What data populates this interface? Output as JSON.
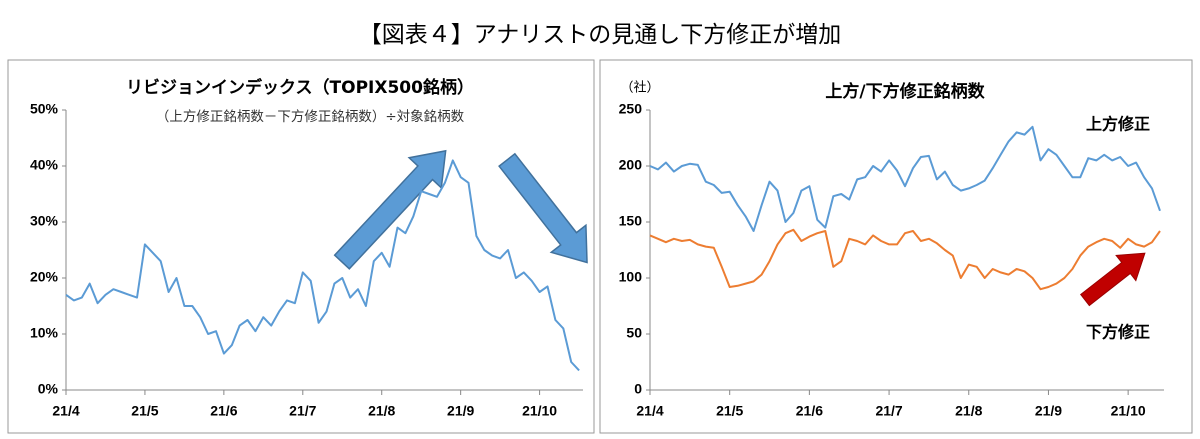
{
  "title": "【図表４】アナリストの見通し下方修正が増加",
  "chart_data": [
    {
      "type": "line",
      "title": "リビジョンインデックス（TOPIX500銘柄）",
      "subtitle": "（上方修正銘柄数－下方修正銘柄数）÷対象銘柄数",
      "color": "#5b9bd5",
      "x": [
        0,
        0.1,
        0.2,
        0.3,
        0.4,
        0.5,
        0.6,
        0.7,
        0.8,
        0.9,
        1,
        1.1,
        1.2,
        1.3,
        1.4,
        1.5,
        1.6,
        1.7,
        1.8,
        1.9,
        2,
        2.1,
        2.2,
        2.3,
        2.4,
        2.5,
        2.6,
        2.7,
        2.8,
        2.9,
        3,
        3.1,
        3.2,
        3.3,
        3.4,
        3.5,
        3.6,
        3.7,
        3.8,
        3.9,
        4,
        4.1,
        4.2,
        4.3,
        4.4,
        4.5,
        4.6,
        4.7,
        4.8,
        4.9,
        5,
        5.1,
        5.2,
        5.3,
        5.4,
        5.5,
        5.6,
        5.7,
        5.8,
        5.9,
        6,
        6.1,
        6.2,
        6.3,
        6.4,
        6.5
      ],
      "values": [
        17,
        16,
        16.5,
        19,
        15.5,
        17,
        18,
        17.5,
        17,
        16.5,
        26,
        24.5,
        23,
        17.5,
        20,
        15,
        15,
        13,
        10,
        10.5,
        6.5,
        8,
        11.5,
        12.5,
        10.5,
        13,
        11.5,
        14,
        16,
        15.5,
        21,
        19.5,
        12,
        14,
        19,
        20,
        16.5,
        18,
        15,
        23,
        24.5,
        22,
        29,
        28,
        31,
        35.5,
        35,
        34.5,
        37,
        41,
        38,
        37,
        27.5,
        25,
        24,
        23.5,
        25,
        20,
        21,
        19.5,
        17.5,
        18.5,
        12.5,
        11,
        5,
        3.5
      ],
      "xlim": [
        0,
        6.55
      ],
      "xticks": [
        {
          "value": 0,
          "label": "21/4"
        },
        {
          "value": 1,
          "label": "21/5"
        },
        {
          "value": 2,
          "label": "21/6"
        },
        {
          "value": 3,
          "label": "21/7"
        },
        {
          "value": 4,
          "label": "21/8"
        },
        {
          "value": 5,
          "label": "21/9"
        },
        {
          "value": 6,
          "label": "21/10"
        }
      ],
      "ylim": [
        0,
        50
      ],
      "yticks": [
        {
          "value": 0,
          "label": "0%"
        },
        {
          "value": 10,
          "label": "10%"
        },
        {
          "value": 20,
          "label": "20%"
        },
        {
          "value": 30,
          "label": "30%"
        },
        {
          "value": 40,
          "label": "40%"
        },
        {
          "value": 50,
          "label": "50%"
        }
      ],
      "grid": false
    },
    {
      "type": "line",
      "title": "上方/下方修正銘柄数",
      "ylabel": "（社）",
      "x": [
        0,
        0.1,
        0.2,
        0.3,
        0.4,
        0.5,
        0.6,
        0.7,
        0.8,
        0.9,
        1,
        1.1,
        1.2,
        1.3,
        1.4,
        1.5,
        1.6,
        1.7,
        1.8,
        1.9,
        2,
        2.1,
        2.2,
        2.3,
        2.4,
        2.5,
        2.6,
        2.7,
        2.8,
        2.9,
        3,
        3.1,
        3.2,
        3.3,
        3.4,
        3.5,
        3.6,
        3.7,
        3.8,
        3.9,
        4,
        4.1,
        4.2,
        4.3,
        4.4,
        4.5,
        4.6,
        4.7,
        4.8,
        4.9,
        5,
        5.1,
        5.2,
        5.3,
        5.4,
        5.5,
        5.6,
        5.7,
        5.8,
        5.9,
        6,
        6.1,
        6.2,
        6.3,
        6.4
      ],
      "series": [
        {
          "name": "上方修正",
          "color": "#5b9bd5",
          "values": [
            200,
            197,
            203,
            195,
            200,
            202,
            201,
            186,
            183,
            176,
            177,
            165,
            155,
            142,
            165,
            186,
            178,
            150,
            158,
            178,
            182,
            152,
            145,
            173,
            175,
            170,
            188,
            190,
            200,
            195,
            205,
            196,
            182,
            198,
            208,
            209,
            188,
            195,
            183,
            178,
            180,
            183,
            187,
            198,
            210,
            222,
            230,
            228,
            235,
            205,
            215,
            210,
            200,
            190,
            190,
            207,
            205,
            210,
            205,
            208,
            200,
            203,
            190,
            180,
            160
          ]
        },
        {
          "name": "下方修正",
          "color": "#ed7d31",
          "values": [
            138,
            135,
            132,
            135,
            133,
            134,
            130,
            128,
            127,
            110,
            92,
            93,
            95,
            97,
            103,
            115,
            130,
            140,
            143,
            133,
            137,
            140,
            142,
            110,
            115,
            135,
            133,
            130,
            138,
            133,
            130,
            130,
            140,
            142,
            133,
            135,
            131,
            125,
            120,
            100,
            112,
            110,
            100,
            108,
            105,
            103,
            108,
            106,
            100,
            90,
            92,
            95,
            100,
            108,
            120,
            128,
            132,
            135,
            133,
            127,
            135,
            130,
            128,
            132,
            142
          ]
        }
      ],
      "xlim": [
        0,
        6.45
      ],
      "xticks": [
        {
          "value": 0,
          "label": "21/4"
        },
        {
          "value": 1,
          "label": "21/5"
        },
        {
          "value": 2,
          "label": "21/6"
        },
        {
          "value": 3,
          "label": "21/7"
        },
        {
          "value": 4,
          "label": "21/8"
        },
        {
          "value": 5,
          "label": "21/9"
        },
        {
          "value": 6,
          "label": "21/10"
        }
      ],
      "ylim": [
        0,
        250
      ],
      "yticks": [
        0,
        50,
        100,
        150,
        200,
        250
      ],
      "grid": false
    }
  ]
}
